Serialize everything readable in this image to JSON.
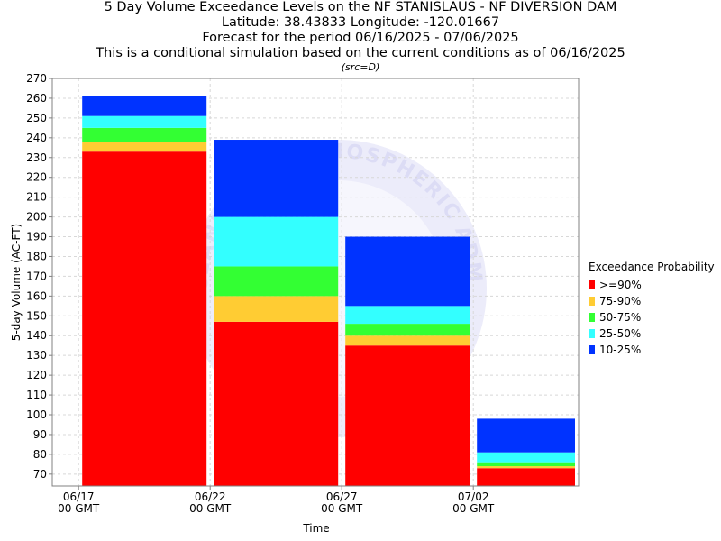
{
  "header": {
    "title_lines": [
      "5 Day Volume Exceedance Levels on the NF STANISLAUS - NF DIVERSION DAM",
      "Latitude: 38.43833 Longitude: -120.01667",
      "Forecast for the period 06/16/2025 - 07/06/2025",
      "This is a conditional simulation based on the current conditions as of 06/16/2025"
    ],
    "source_note": "(src=D)"
  },
  "watermark": {
    "text": "NATIONAL OCEANIC AND ATMOSPHERIC ADMINISTRATION",
    "color": "#dcdcf5"
  },
  "chart_data": {
    "type": "bar",
    "stacked": true,
    "xlabel": "Time",
    "ylabel": "5-day Volume (AC-FT)",
    "ylim": [
      64,
      270
    ],
    "yticks": [
      70,
      80,
      90,
      100,
      110,
      120,
      130,
      140,
      150,
      160,
      170,
      180,
      190,
      200,
      210,
      220,
      230,
      240,
      250,
      260,
      270
    ],
    "xlim": [
      "06/16",
      "07/06"
    ],
    "xticks": [
      {
        "date": "06/17",
        "label_line1": "06/17",
        "label_line2": "00 GMT"
      },
      {
        "date": "06/22",
        "label_line1": "06/22",
        "label_line2": "00 GMT"
      },
      {
        "date": "06/27",
        "label_line1": "06/27",
        "label_line2": "00 GMT"
      },
      {
        "date": "07/02",
        "label_line1": "07/02",
        "label_line2": "00 GMT"
      }
    ],
    "grid": true,
    "legend_title": "Exceedance Probability",
    "legend_position": "right",
    "bars": [
      {
        "start": "06/17",
        "end": "06/22",
        "top_values": [
          233,
          238,
          245,
          251,
          261
        ]
      },
      {
        "start": "06/22",
        "end": "06/27",
        "top_values": [
          147,
          160,
          175,
          200,
          239
        ]
      },
      {
        "start": "06/27",
        "end": "07/02",
        "top_values": [
          135,
          140,
          146,
          155,
          190
        ]
      },
      {
        "start": "07/02",
        "end": "07/06",
        "top_values": [
          73,
          74,
          76,
          81,
          98
        ]
      }
    ],
    "series": [
      {
        "name": ">=90%",
        "color": "#ff0000"
      },
      {
        "name": "75-90%",
        "color": "#ffcc33"
      },
      {
        "name": "50-75%",
        "color": "#33ff33"
      },
      {
        "name": "25-50%",
        "color": "#33ffff"
      },
      {
        "name": "10-25%",
        "color": "#0033ff"
      }
    ]
  }
}
